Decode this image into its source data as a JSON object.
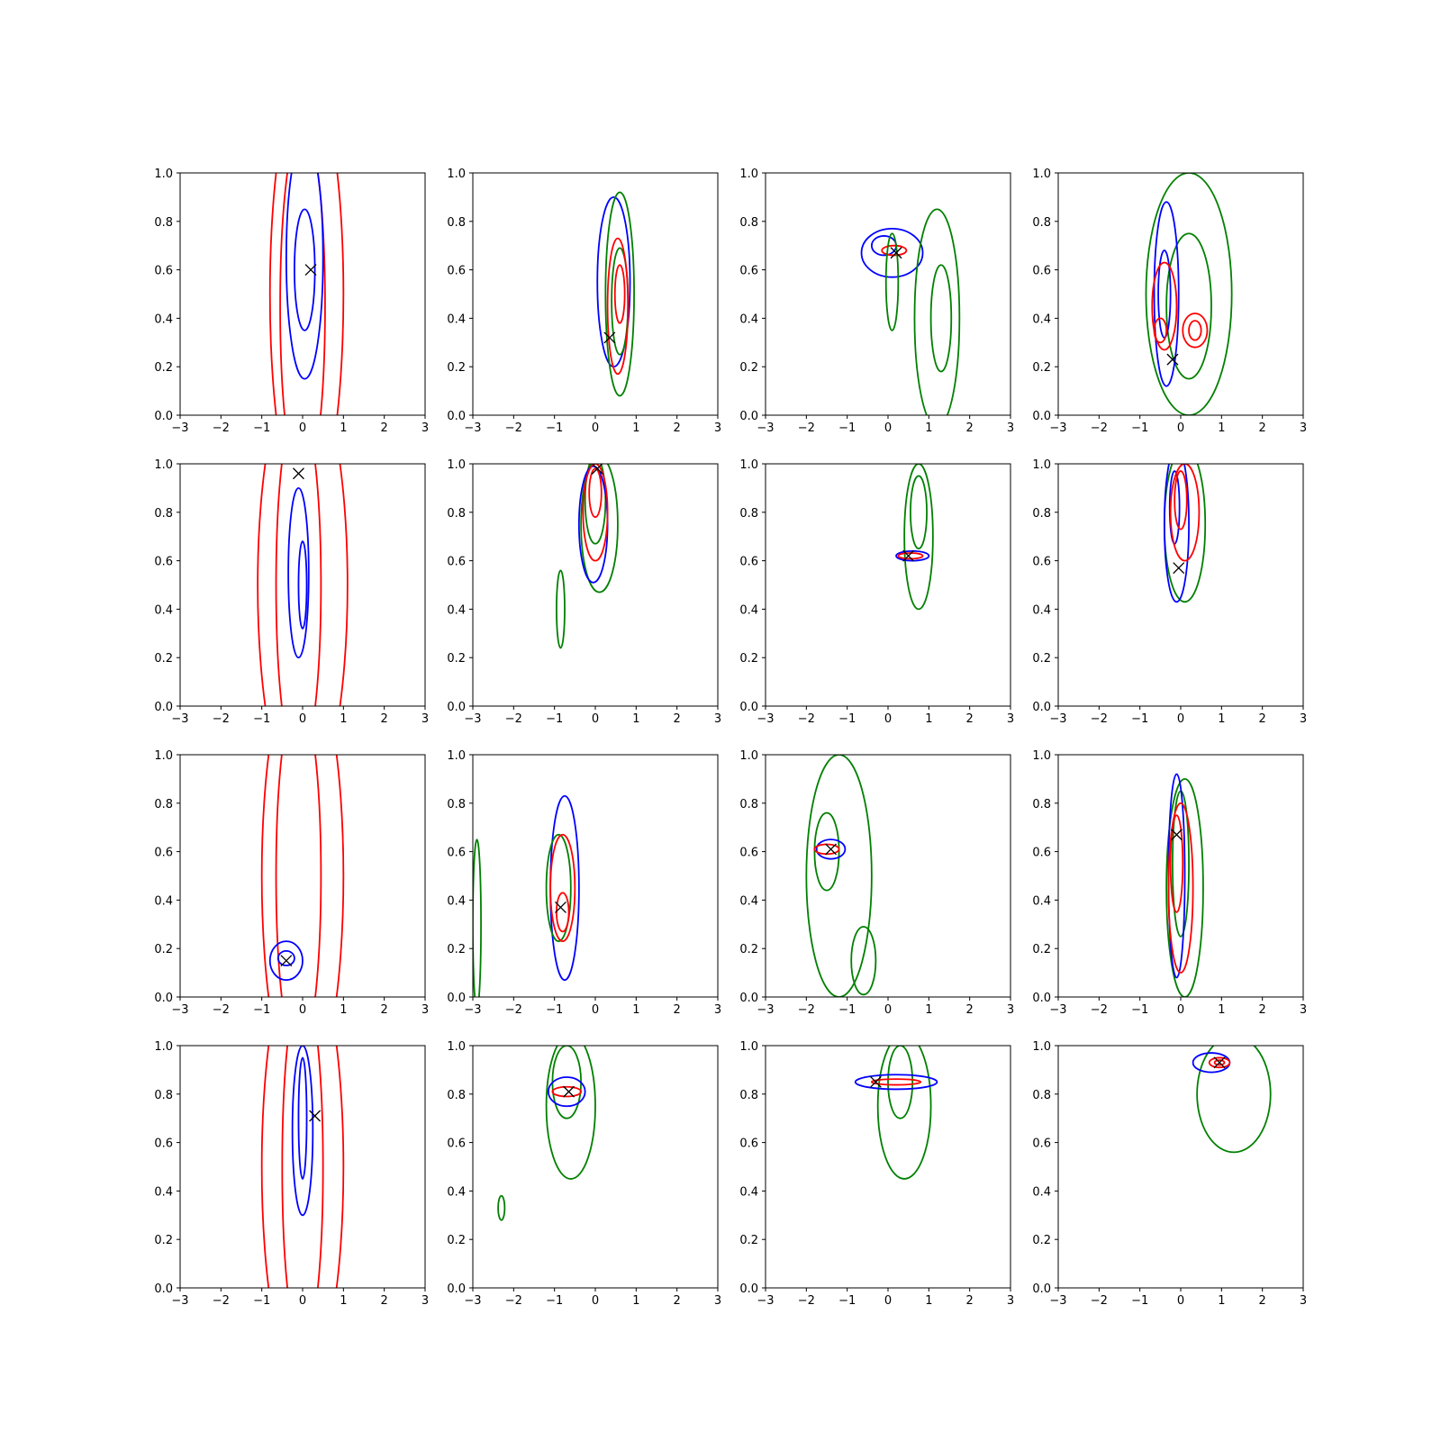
{
  "chart_data": {
    "type": "contour",
    "layout": {
      "rows": 4,
      "cols": 4
    },
    "colors": {
      "series_a": "#0000ff",
      "series_b": "#ff0000",
      "series_c": "#008000",
      "marker": "#000000"
    },
    "axes_defaults": {
      "xlim": [
        -3,
        3
      ],
      "ylim": [
        0,
        1
      ],
      "xticks": [
        -3,
        -2,
        -1,
        0,
        1,
        2,
        3
      ],
      "yticks": [
        0.0,
        0.2,
        0.4,
        0.6,
        0.8,
        1.0
      ],
      "xtick_labels": [
        "−3",
        "−2",
        "−1",
        "0",
        "1",
        "2",
        "3"
      ],
      "ytick_labels": [
        "0.0",
        "0.2",
        "0.4",
        "0.6",
        "0.8",
        "1.0"
      ]
    },
    "panels": [
      {
        "marker": [
          0.2,
          0.6
        ],
        "contours": [
          {
            "series": "series_b",
            "cx": 0.1,
            "cy": 0.5,
            "rx": 0.9,
            "ry": 0.9
          },
          {
            "series": "series_b",
            "cx": 0.0,
            "cy": 0.45,
            "rx": 0.55,
            "ry": 0.75
          },
          {
            "series": "series_a",
            "cx": 0.05,
            "cy": 0.65,
            "rx": 0.45,
            "ry": 0.5
          },
          {
            "series": "series_a",
            "cx": 0.05,
            "cy": 0.6,
            "rx": 0.25,
            "ry": 0.25
          }
        ]
      },
      {
        "marker": [
          0.35,
          0.32
        ],
        "contours": [
          {
            "series": "series_a",
            "cx": 0.45,
            "cy": 0.55,
            "rx": 0.4,
            "ry": 0.35
          },
          {
            "series": "series_c",
            "cx": 0.6,
            "cy": 0.5,
            "rx": 0.35,
            "ry": 0.42
          },
          {
            "series": "series_c",
            "cx": 0.6,
            "cy": 0.47,
            "rx": 0.2,
            "ry": 0.22
          },
          {
            "series": "series_b",
            "cx": 0.55,
            "cy": 0.45,
            "rx": 0.25,
            "ry": 0.28
          },
          {
            "series": "series_b",
            "cx": 0.6,
            "cy": 0.5,
            "rx": 0.12,
            "ry": 0.12
          }
        ]
      },
      {
        "marker": [
          0.2,
          0.67
        ],
        "contours": [
          {
            "series": "series_a",
            "cx": 0.1,
            "cy": 0.67,
            "rx": 0.75,
            "ry": 0.1
          },
          {
            "series": "series_a",
            "cx": -0.1,
            "cy": 0.7,
            "rx": 0.3,
            "ry": 0.04
          },
          {
            "series": "series_b",
            "cx": 0.15,
            "cy": 0.68,
            "rx": 0.3,
            "ry": 0.02
          },
          {
            "series": "series_c",
            "cx": 1.2,
            "cy": 0.4,
            "rx": 0.55,
            "ry": 0.45
          },
          {
            "series": "series_c",
            "cx": 1.3,
            "cy": 0.4,
            "rx": 0.25,
            "ry": 0.22
          },
          {
            "series": "series_c",
            "cx": 0.1,
            "cy": 0.55,
            "rx": 0.15,
            "ry": 0.2
          }
        ]
      },
      {
        "marker": [
          -0.2,
          0.23
        ],
        "contours": [
          {
            "series": "series_c",
            "cx": 0.2,
            "cy": 0.5,
            "rx": 1.05,
            "ry": 0.5
          },
          {
            "series": "series_c",
            "cx": 0.2,
            "cy": 0.45,
            "rx": 0.55,
            "ry": 0.3
          },
          {
            "series": "series_a",
            "cx": -0.35,
            "cy": 0.5,
            "rx": 0.3,
            "ry": 0.38
          },
          {
            "series": "series_a",
            "cx": -0.4,
            "cy": 0.5,
            "rx": 0.15,
            "ry": 0.18
          },
          {
            "series": "series_b",
            "cx": -0.4,
            "cy": 0.45,
            "rx": 0.3,
            "ry": 0.18
          },
          {
            "series": "series_b",
            "cx": -0.5,
            "cy": 0.35,
            "rx": 0.15,
            "ry": 0.05
          },
          {
            "series": "series_b",
            "cx": 0.35,
            "cy": 0.35,
            "rx": 0.3,
            "ry": 0.07
          },
          {
            "series": "series_b",
            "cx": 0.35,
            "cy": 0.35,
            "rx": 0.15,
            "ry": 0.04
          }
        ]
      },
      {
        "marker": [
          -0.1,
          0.96
        ],
        "contours": [
          {
            "series": "series_b",
            "cx": 0.0,
            "cy": 0.5,
            "rx": 1.1,
            "ry": 0.9
          },
          {
            "series": "series_b",
            "cx": -0.1,
            "cy": 0.5,
            "rx": 0.55,
            "ry": 0.75
          },
          {
            "series": "series_a",
            "cx": -0.1,
            "cy": 0.55,
            "rx": 0.25,
            "ry": 0.35
          },
          {
            "series": "series_a",
            "cx": 0.0,
            "cy": 0.5,
            "rx": 0.1,
            "ry": 0.18
          }
        ]
      },
      {
        "marker": [
          0.05,
          0.98
        ],
        "contours": [
          {
            "series": "series_c",
            "cx": 0.1,
            "cy": 0.75,
            "rx": 0.45,
            "ry": 0.28
          },
          {
            "series": "series_c",
            "cx": 0.0,
            "cy": 0.85,
            "rx": 0.25,
            "ry": 0.18
          },
          {
            "series": "series_c",
            "cx": -0.85,
            "cy": 0.4,
            "rx": 0.1,
            "ry": 0.16
          },
          {
            "series": "series_a",
            "cx": -0.05,
            "cy": 0.75,
            "rx": 0.35,
            "ry": 0.24
          },
          {
            "series": "series_b",
            "cx": 0.0,
            "cy": 0.8,
            "rx": 0.3,
            "ry": 0.2
          },
          {
            "series": "series_b",
            "cx": 0.0,
            "cy": 0.88,
            "rx": 0.15,
            "ry": 0.1
          }
        ]
      },
      {
        "marker": [
          0.5,
          0.62
        ],
        "contours": [
          {
            "series": "series_c",
            "cx": 0.75,
            "cy": 0.7,
            "rx": 0.35,
            "ry": 0.3
          },
          {
            "series": "series_c",
            "cx": 0.75,
            "cy": 0.8,
            "rx": 0.2,
            "ry": 0.15
          },
          {
            "series": "series_a",
            "cx": 0.6,
            "cy": 0.62,
            "rx": 0.4,
            "ry": 0.02
          },
          {
            "series": "series_b",
            "cx": 0.55,
            "cy": 0.62,
            "rx": 0.3,
            "ry": 0.012
          }
        ]
      },
      {
        "marker": [
          -0.05,
          0.57
        ],
        "contours": [
          {
            "series": "series_c",
            "cx": 0.1,
            "cy": 0.75,
            "rx": 0.5,
            "ry": 0.32
          },
          {
            "series": "series_a",
            "cx": -0.1,
            "cy": 0.75,
            "rx": 0.3,
            "ry": 0.32
          },
          {
            "series": "series_a",
            "cx": -0.15,
            "cy": 0.82,
            "rx": 0.12,
            "ry": 0.15
          },
          {
            "series": "series_b",
            "cx": 0.1,
            "cy": 0.8,
            "rx": 0.35,
            "ry": 0.2
          },
          {
            "series": "series_b",
            "cx": 0.0,
            "cy": 0.85,
            "rx": 0.15,
            "ry": 0.12
          }
        ]
      },
      {
        "marker": [
          -0.4,
          0.15
        ],
        "contours": [
          {
            "series": "series_b",
            "cx": 0.0,
            "cy": 0.5,
            "rx": 1.0,
            "ry": 0.9
          },
          {
            "series": "series_b",
            "cx": -0.1,
            "cy": 0.5,
            "rx": 0.55,
            "ry": 0.75
          },
          {
            "series": "series_a",
            "cx": -0.4,
            "cy": 0.15,
            "rx": 0.4,
            "ry": 0.08
          },
          {
            "series": "series_a",
            "cx": -0.4,
            "cy": 0.16,
            "rx": 0.2,
            "ry": 0.03
          }
        ]
      },
      {
        "marker": [
          -0.85,
          0.37
        ],
        "contours": [
          {
            "series": "series_a",
            "cx": -0.75,
            "cy": 0.45,
            "rx": 0.35,
            "ry": 0.38
          },
          {
            "series": "series_c",
            "cx": -0.9,
            "cy": 0.45,
            "rx": 0.3,
            "ry": 0.22
          },
          {
            "series": "series_c",
            "cx": -2.9,
            "cy": 0.3,
            "rx": 0.1,
            "ry": 0.35
          },
          {
            "series": "series_b",
            "cx": -0.8,
            "cy": 0.45,
            "rx": 0.3,
            "ry": 0.22
          },
          {
            "series": "series_b",
            "cx": -0.8,
            "cy": 0.35,
            "rx": 0.15,
            "ry": 0.08
          }
        ]
      },
      {
        "marker": [
          -1.4,
          0.61
        ],
        "contours": [
          {
            "series": "series_c",
            "cx": -1.2,
            "cy": 0.5,
            "rx": 0.8,
            "ry": 0.5
          },
          {
            "series": "series_c",
            "cx": -1.5,
            "cy": 0.6,
            "rx": 0.3,
            "ry": 0.16
          },
          {
            "series": "series_c",
            "cx": -0.6,
            "cy": 0.15,
            "rx": 0.3,
            "ry": 0.14
          },
          {
            "series": "series_a",
            "cx": -1.4,
            "cy": 0.61,
            "rx": 0.35,
            "ry": 0.04
          },
          {
            "series": "series_b",
            "cx": -1.5,
            "cy": 0.61,
            "rx": 0.3,
            "ry": 0.02
          }
        ]
      },
      {
        "marker": [
          -0.1,
          0.67
        ],
        "contours": [
          {
            "series": "series_c",
            "cx": 0.1,
            "cy": 0.45,
            "rx": 0.45,
            "ry": 0.45
          },
          {
            "series": "series_c",
            "cx": 0.0,
            "cy": 0.55,
            "rx": 0.2,
            "ry": 0.3
          },
          {
            "series": "series_a",
            "cx": -0.1,
            "cy": 0.5,
            "rx": 0.2,
            "ry": 0.42
          },
          {
            "series": "series_b",
            "cx": 0.0,
            "cy": 0.45,
            "rx": 0.3,
            "ry": 0.35
          },
          {
            "series": "series_b",
            "cx": -0.1,
            "cy": 0.55,
            "rx": 0.15,
            "ry": 0.2
          }
        ]
      },
      {
        "marker": [
          0.3,
          0.71
        ],
        "contours": [
          {
            "series": "series_b",
            "cx": 0.0,
            "cy": 0.5,
            "rx": 1.0,
            "ry": 0.9
          },
          {
            "series": "series_b",
            "cx": 0.0,
            "cy": 0.5,
            "rx": 0.5,
            "ry": 0.75
          },
          {
            "series": "series_a",
            "cx": 0.0,
            "cy": 0.65,
            "rx": 0.25,
            "ry": 0.35
          },
          {
            "series": "series_a",
            "cx": 0.0,
            "cy": 0.7,
            "rx": 0.1,
            "ry": 0.25
          }
        ]
      },
      {
        "marker": [
          -0.65,
          0.81
        ],
        "contours": [
          {
            "series": "series_c",
            "cx": -0.6,
            "cy": 0.75,
            "rx": 0.6,
            "ry": 0.3
          },
          {
            "series": "series_c",
            "cx": -0.7,
            "cy": 0.85,
            "rx": 0.35,
            "ry": 0.15
          },
          {
            "series": "series_c",
            "cx": -2.3,
            "cy": 0.33,
            "rx": 0.08,
            "ry": 0.05
          },
          {
            "series": "series_a",
            "cx": -0.7,
            "cy": 0.81,
            "rx": 0.45,
            "ry": 0.06
          },
          {
            "series": "series_b",
            "cx": -0.7,
            "cy": 0.81,
            "rx": 0.35,
            "ry": 0.02
          }
        ]
      },
      {
        "marker": [
          -0.3,
          0.85
        ],
        "contours": [
          {
            "series": "series_c",
            "cx": 0.4,
            "cy": 0.75,
            "rx": 0.65,
            "ry": 0.3
          },
          {
            "series": "series_c",
            "cx": 0.3,
            "cy": 0.85,
            "rx": 0.3,
            "ry": 0.15
          },
          {
            "series": "series_a",
            "cx": 0.2,
            "cy": 0.85,
            "rx": 1.0,
            "ry": 0.03
          },
          {
            "series": "series_b",
            "cx": 0.2,
            "cy": 0.85,
            "rx": 0.6,
            "ry": 0.012
          }
        ]
      },
      {
        "marker": [
          0.95,
          0.93
        ],
        "contours": [
          {
            "series": "series_c",
            "cx": 1.3,
            "cy": 0.8,
            "rx": 0.9,
            "ry": 0.24
          },
          {
            "series": "series_a",
            "cx": 0.75,
            "cy": 0.93,
            "rx": 0.45,
            "ry": 0.04
          },
          {
            "series": "series_b",
            "cx": 0.95,
            "cy": 0.93,
            "rx": 0.25,
            "ry": 0.02
          },
          {
            "series": "series_b",
            "cx": 0.95,
            "cy": 0.93,
            "rx": 0.12,
            "ry": 0.01
          }
        ]
      }
    ]
  }
}
